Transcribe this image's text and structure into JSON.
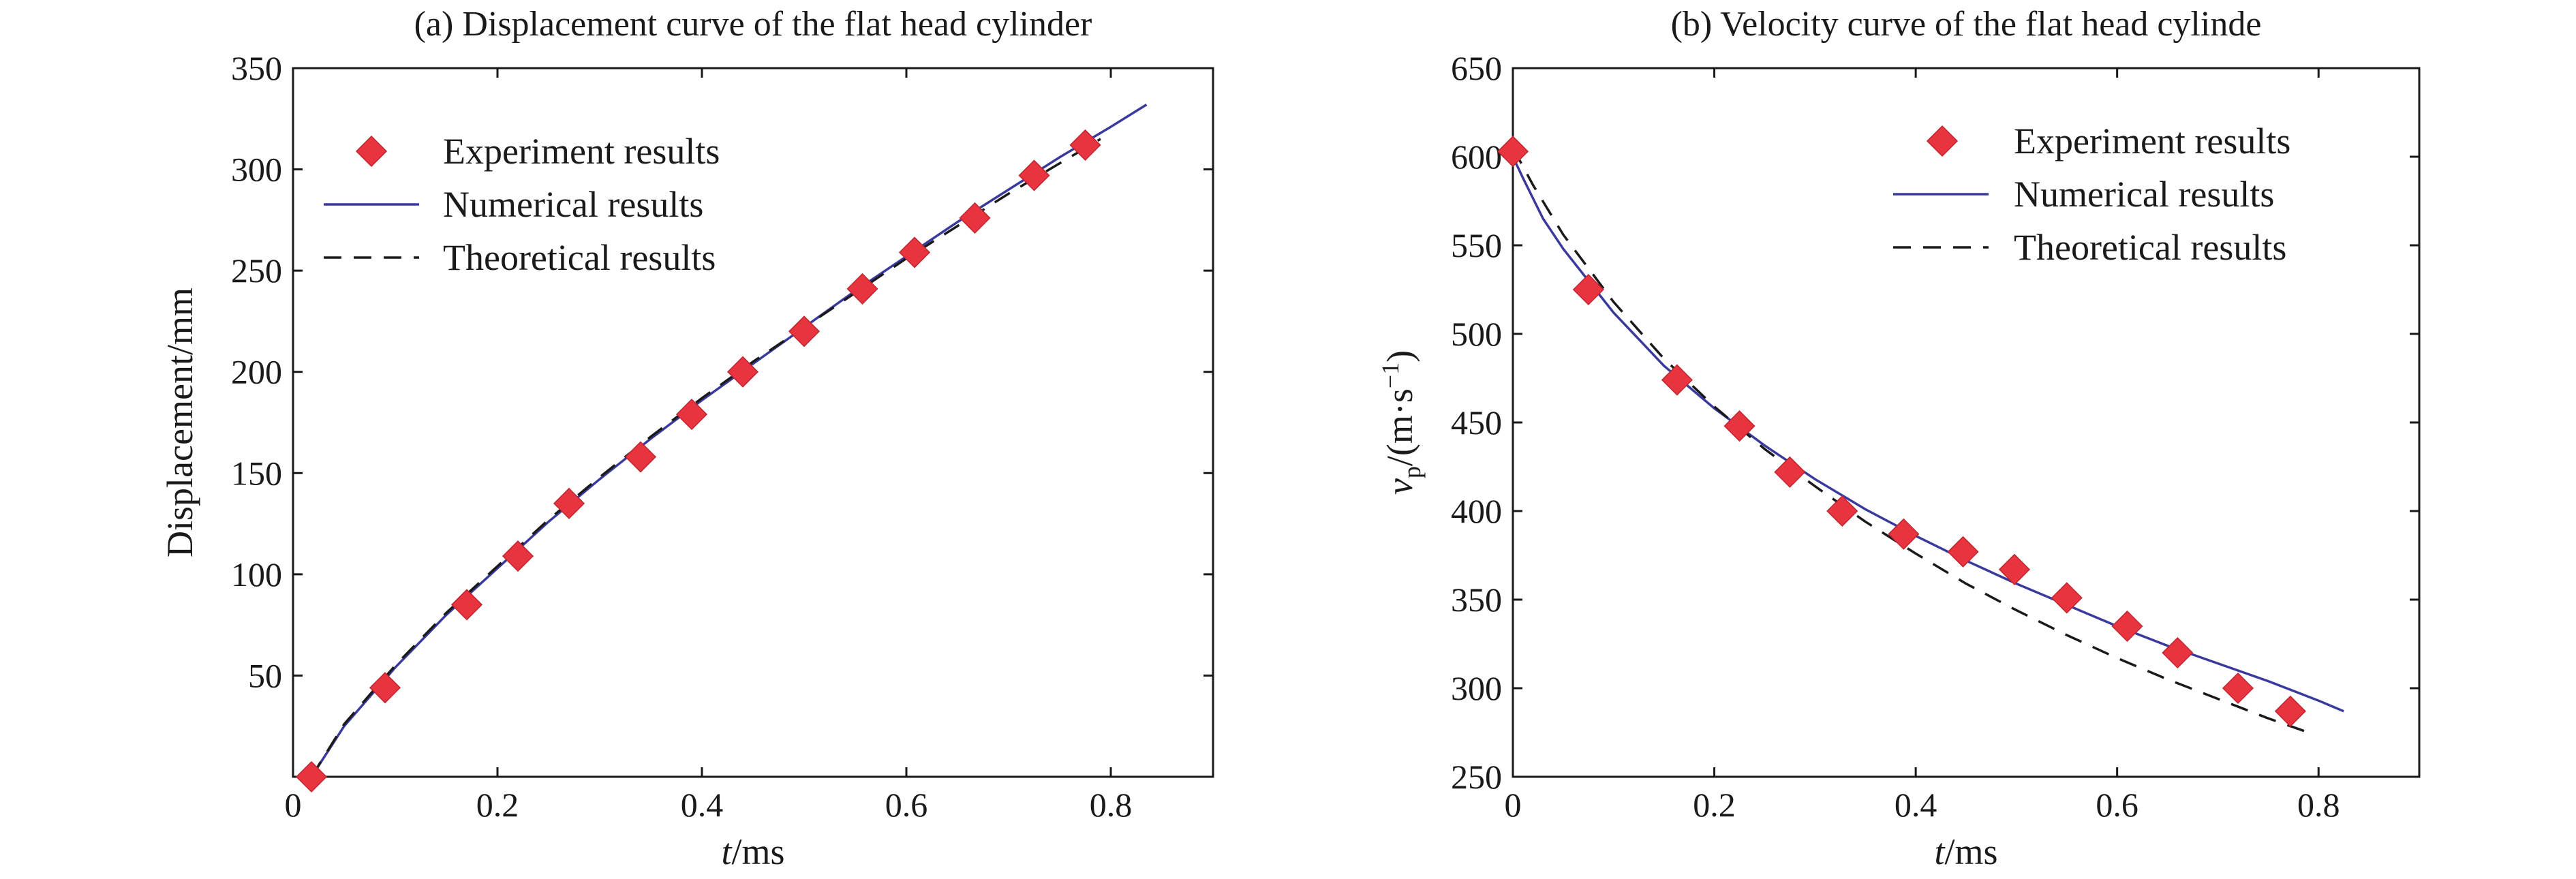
{
  "chart_data": [
    {
      "type": "line",
      "title": "(a) Displacement curve of the flat head cylinder",
      "xlabel_var": "t",
      "xlabel_unit": "/ms",
      "ylabel": "Displacement/mm",
      "xlim": [
        0,
        0.9
      ],
      "ylim": [
        0,
        350
      ],
      "xticks": [
        0,
        0.2,
        0.4,
        0.6,
        0.8
      ],
      "xtick_labels": [
        "0",
        "0.2",
        "0.4",
        "0.6",
        "0.8"
      ],
      "yticks": [
        50,
        100,
        150,
        200,
        250,
        300,
        350
      ],
      "ytick_labels": [
        "50",
        "100",
        "150",
        "200",
        "250",
        "300",
        "350"
      ],
      "legend_position": "top-left",
      "series": [
        {
          "name": "Experiment results",
          "style": "marker",
          "color": "#e8343f",
          "x": [
            0.018,
            0.09,
            0.17,
            0.22,
            0.27,
            0.34,
            0.39,
            0.44,
            0.5,
            0.557,
            0.608,
            0.667,
            0.725,
            0.775
          ],
          "y": [
            0,
            44,
            85,
            109,
            135,
            158,
            179,
            200,
            220,
            241,
            259,
            276,
            297,
            312
          ]
        },
        {
          "name": "Numerical results",
          "style": "solid",
          "color": "#3a3a9e",
          "x": [
            0.018,
            0.05,
            0.1,
            0.15,
            0.2,
            0.25,
            0.3,
            0.35,
            0.4,
            0.45,
            0.5,
            0.55,
            0.6,
            0.65,
            0.7,
            0.75,
            0.8,
            0.835
          ],
          "y": [
            0,
            25,
            54,
            80,
            103,
            126,
            147,
            167,
            186,
            204,
            222,
            240,
            257,
            274,
            290,
            306,
            321,
            332
          ]
        },
        {
          "name": "Theoretical results",
          "style": "dashed",
          "color": "#1a1a1a",
          "x": [
            0.018,
            0.05,
            0.1,
            0.15,
            0.2,
            0.25,
            0.3,
            0.35,
            0.4,
            0.45,
            0.5,
            0.55,
            0.6,
            0.65,
            0.7,
            0.75,
            0.79
          ],
          "y": [
            0,
            26,
            55,
            81,
            104,
            127,
            148,
            168,
            187,
            205,
            222,
            239,
            256,
            272,
            288,
            303,
            315
          ]
        }
      ]
    },
    {
      "type": "line",
      "title": "(b) Velocity curve of the flat head cylinde",
      "xlabel_var": "t",
      "xlabel_unit": "/ms",
      "ylabel_var": "v",
      "ylabel_sub": "p",
      "ylabel_unit_open": "/(m·s",
      "ylabel_sup": "−1",
      "ylabel_unit_close": ")",
      "xlim": [
        0,
        0.9
      ],
      "ylim": [
        250,
        650
      ],
      "xticks": [
        0,
        0.2,
        0.4,
        0.6,
        0.8
      ],
      "xtick_labels": [
        "0",
        "0.2",
        "0.4",
        "0.6",
        "0.8"
      ],
      "yticks": [
        250,
        300,
        350,
        400,
        450,
        500,
        550,
        600,
        650
      ],
      "ytick_labels": [
        "250",
        "300",
        "350",
        "400",
        "450",
        "500",
        "550",
        "600",
        "650"
      ],
      "legend_position": "top-right",
      "series": [
        {
          "name": "Experiment results",
          "style": "marker",
          "color": "#e8343f",
          "x": [
            0,
            0.075,
            0.163,
            0.225,
            0.275,
            0.327,
            0.388,
            0.447,
            0.498,
            0.55,
            0.61,
            0.66,
            0.72,
            0.772
          ],
          "y": [
            603,
            525,
            474,
            448,
            422,
            400,
            387,
            377,
            367,
            351,
            335,
            320,
            300,
            287
          ]
        },
        {
          "name": "Numerical results",
          "style": "solid",
          "color": "#3a3a9e",
          "x": [
            0,
            0.01,
            0.03,
            0.05,
            0.1,
            0.15,
            0.2,
            0.25,
            0.3,
            0.35,
            0.4,
            0.45,
            0.5,
            0.55,
            0.6,
            0.65,
            0.7,
            0.75,
            0.8,
            0.825
          ],
          "y": [
            600,
            588,
            565,
            548,
            512,
            482,
            458,
            437,
            418,
            401,
            386,
            372,
            359,
            347,
            335,
            324,
            314,
            304,
            293,
            287
          ]
        },
        {
          "name": "Theoretical results",
          "style": "dashed",
          "color": "#1a1a1a",
          "x": [
            0,
            0.02,
            0.05,
            0.1,
            0.15,
            0.2,
            0.25,
            0.3,
            0.35,
            0.4,
            0.45,
            0.5,
            0.55,
            0.6,
            0.65,
            0.7,
            0.75,
            0.79
          ],
          "y": [
            605,
            584,
            556,
            518,
            486,
            459,
            435,
            414,
            394,
            376,
            359,
            344,
            330,
            317,
            305,
            294,
            283,
            275
          ]
        }
      ]
    }
  ]
}
